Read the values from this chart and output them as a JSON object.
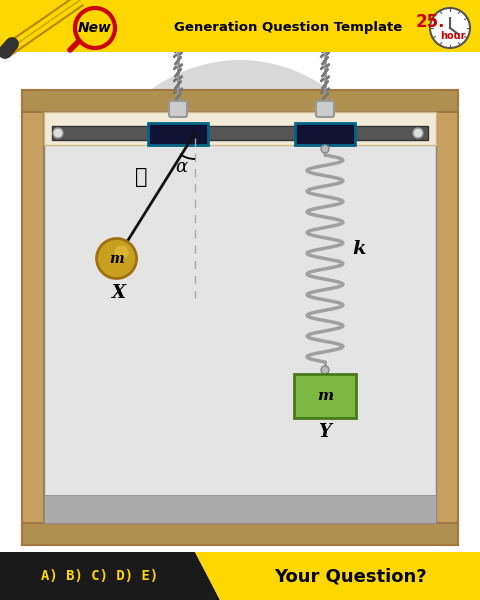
{
  "bg_color": "#ffffff",
  "yellow_color": "#FFD700",
  "dark_color": "#1a1a1a",
  "wall_color": "#c8a060",
  "ceiling_color": "#f0ead0",
  "spring_color": "#b0b0b0",
  "mass_box_color": "#7cb842",
  "mass_ball_color": "#c8a020",
  "pendulum_rod_color": "#111111",
  "dashed_color": "#aaaaaa",
  "title_text": "Generation Question Template",
  "new_text": "New",
  "hour_text": "25.",
  "hour_sub": "hour",
  "bottom_left": "A) B) C) D) E)",
  "bottom_right": "Your Question?",
  "label_l": "ℓ",
  "label_alpha": "α",
  "label_m_pend": "m",
  "label_x": "X",
  "label_k": "k",
  "label_m_spring": "m",
  "label_y": "Y",
  "inner_bg": "#dcdcdc",
  "frame_outer": "#c8a060",
  "frame_inner": "#a08040",
  "rail_color": "#606060",
  "block_color": "#111133",
  "teal_color": "#006688",
  "cable_color": "#888888",
  "floor_color": "#aaaaaa"
}
